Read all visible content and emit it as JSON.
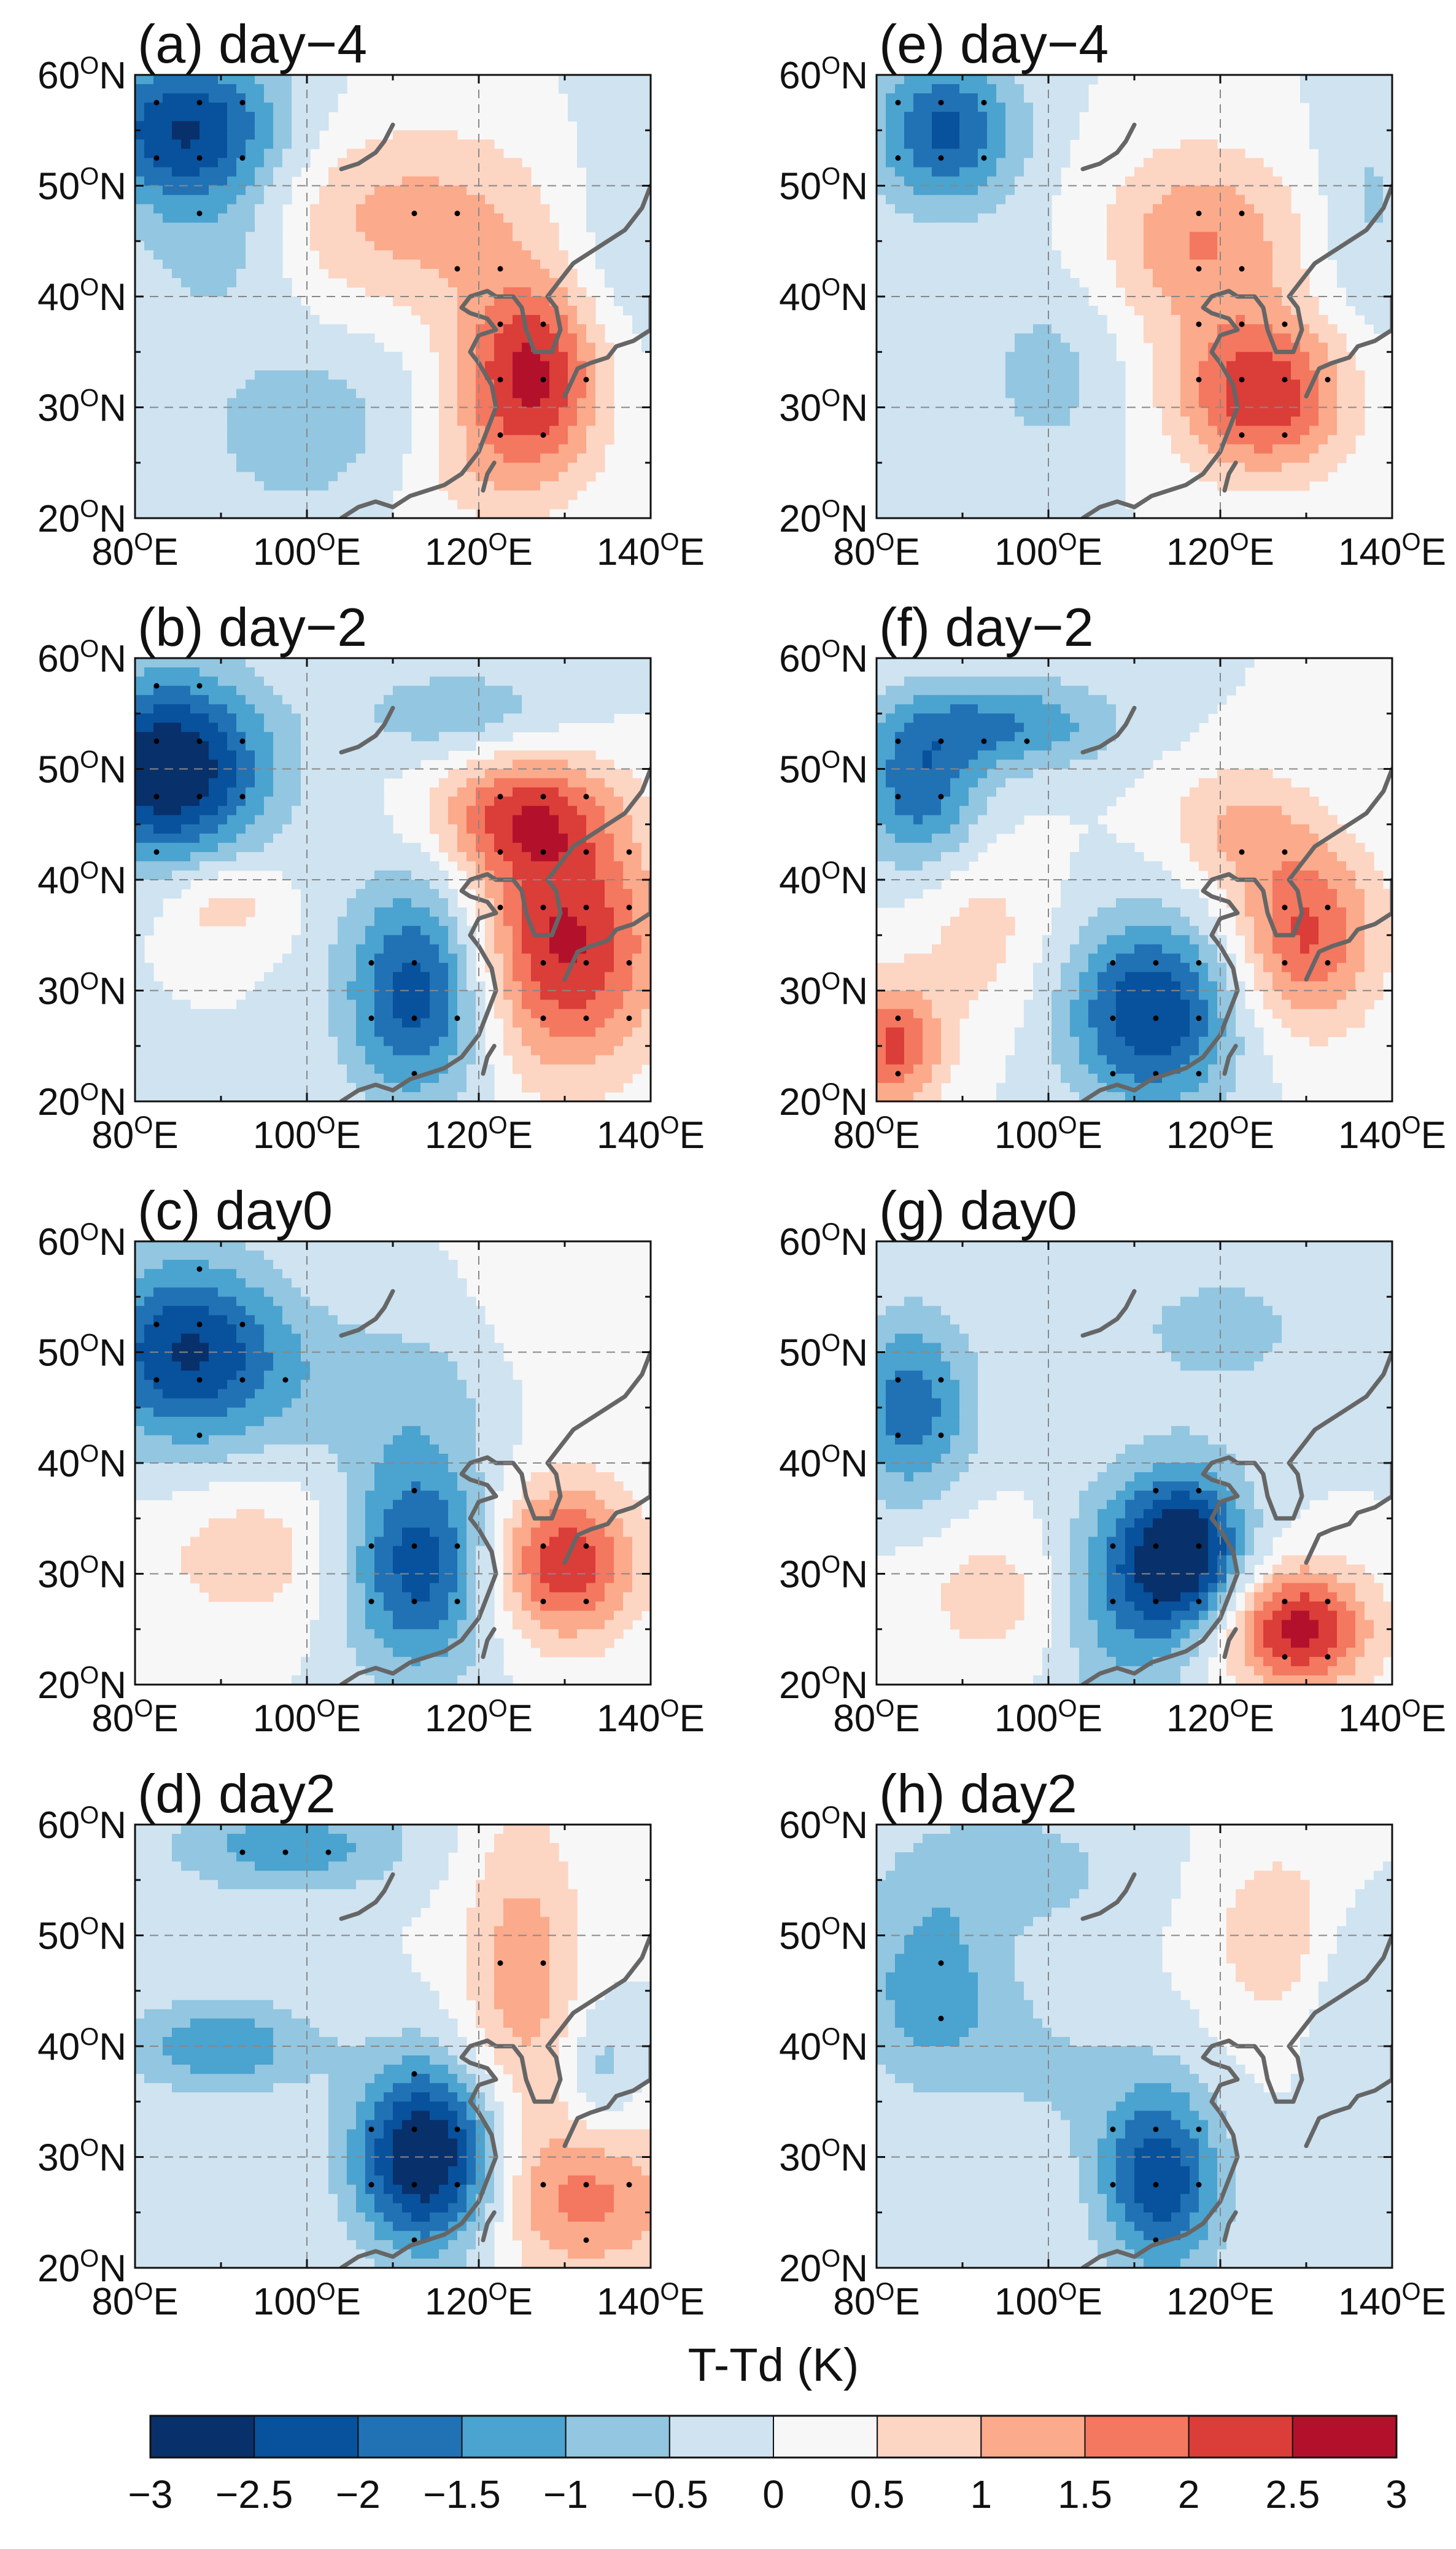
{
  "chart_data": {
    "type": "heatmap",
    "variable": "T-Td",
    "colorbar": {
      "title": "T-Td (K)",
      "ticks": [
        "−3",
        "−2.5",
        "−2",
        "−1.5",
        "−1",
        "−0.5",
        "0",
        "0.5",
        "1",
        "1.5",
        "2",
        "2.5",
        "3"
      ],
      "levels": [
        -3,
        -2.5,
        -2,
        -1.5,
        -1,
        -0.5,
        0,
        0.5,
        1,
        1.5,
        2,
        2.5,
        3
      ],
      "colors": [
        "#08306b",
        "#08519c",
        "#2171b5",
        "#4ba3cf",
        "#93c6e0",
        "#cfe3f1",
        "#f7f7f7",
        "#fdd5c3",
        "#fbaa8b",
        "#f4775f",
        "#db3d39",
        "#b3112b"
      ]
    },
    "axes": {
      "xlim": [
        80,
        140
      ],
      "ylim": [
        20,
        60
      ],
      "x_ticks": [
        {
          "base": "80",
          "sup": "O",
          "suffix": "E"
        },
        {
          "base": "100",
          "sup": "O",
          "suffix": "E"
        },
        {
          "base": "120",
          "sup": "O",
          "suffix": "E"
        },
        {
          "base": "140",
          "sup": "O",
          "suffix": "E"
        }
      ],
      "y_ticks": [
        {
          "base": "20",
          "sup": "O",
          "suffix": "N"
        },
        {
          "base": "30",
          "sup": "O",
          "suffix": "N"
        },
        {
          "base": "40",
          "sup": "O",
          "suffix": "N"
        },
        {
          "base": "50",
          "sup": "O",
          "suffix": "N"
        },
        {
          "base": "60",
          "sup": "O",
          "suffix": "N"
        }
      ]
    },
    "panels": [
      {
        "label": "(a) day−4",
        "anomalies": [
          {
            "lon": 86,
            "lat": 55,
            "amp": -2.6,
            "rx": 8,
            "ry": 5
          },
          {
            "lon": 90,
            "lat": 44,
            "amp": -0.8,
            "rx": 7,
            "ry": 5
          },
          {
            "lon": 112,
            "lat": 47,
            "amp": 1.2,
            "rx": 14,
            "ry": 6
          },
          {
            "lon": 126,
            "lat": 33,
            "amp": 2.7,
            "rx": 6,
            "ry": 6
          },
          {
            "lon": 100,
            "lat": 28,
            "amp": -0.8,
            "rx": 10,
            "ry": 6
          },
          {
            "lon": 136,
            "lat": 45,
            "amp": -0.6,
            "rx": 6,
            "ry": 8
          },
          {
            "lon": 120,
            "lat": 24,
            "amp": 0.6,
            "rx": 8,
            "ry": 4
          }
        ]
      },
      {
        "label": "(b) day−2",
        "anomalies": [
          {
            "lon": 84,
            "lat": 50,
            "amp": -3.1,
            "rx": 8,
            "ry": 6
          },
          {
            "lon": 113,
            "lat": 30,
            "amp": -2.4,
            "rx": 6,
            "ry": 7
          },
          {
            "lon": 130,
            "lat": 34,
            "amp": 2.6,
            "rx": 8,
            "ry": 8
          },
          {
            "lon": 125,
            "lat": 46,
            "amp": 1.9,
            "rx": 7,
            "ry": 4
          },
          {
            "lon": 90,
            "lat": 38,
            "amp": 0.9,
            "rx": 5,
            "ry": 3
          },
          {
            "lon": 118,
            "lat": 55,
            "amp": -0.9,
            "rx": 9,
            "ry": 3
          }
        ]
      },
      {
        "label": "(c) day0",
        "anomalies": [
          {
            "lon": 86,
            "lat": 50,
            "amp": -2.5,
            "rx": 8,
            "ry": 6
          },
          {
            "lon": 113,
            "lat": 31,
            "amp": -2.3,
            "rx": 6,
            "ry": 7
          },
          {
            "lon": 130,
            "lat": 31,
            "amp": 2.4,
            "rx": 6,
            "ry": 5
          },
          {
            "lon": 93,
            "lat": 32,
            "amp": 0.8,
            "rx": 8,
            "ry": 5
          },
          {
            "lon": 110,
            "lat": 47,
            "amp": -0.7,
            "rx": 12,
            "ry": 5
          },
          {
            "lon": 130,
            "lat": 50,
            "amp": 0.5,
            "rx": 8,
            "ry": 6
          }
        ]
      },
      {
        "label": "(d) day2",
        "anomalies": [
          {
            "lon": 114,
            "lat": 30,
            "amp": -3.2,
            "rx": 6,
            "ry": 6
          },
          {
            "lon": 90,
            "lat": 40,
            "amp": -1.4,
            "rx": 8,
            "ry": 3
          },
          {
            "lon": 125,
            "lat": 46,
            "amp": 1.3,
            "rx": 5,
            "ry": 11
          },
          {
            "lon": 133,
            "lat": 26,
            "amp": 1.6,
            "rx": 8,
            "ry": 5
          },
          {
            "lon": 98,
            "lat": 58,
            "amp": -1.3,
            "rx": 10,
            "ry": 3
          },
          {
            "lon": 134,
            "lat": 38,
            "amp": -0.8,
            "rx": 3,
            "ry": 4
          }
        ]
      },
      {
        "label": "(e) day−4",
        "anomalies": [
          {
            "lon": 88,
            "lat": 55,
            "amp": -2.1,
            "rx": 6,
            "ry": 5
          },
          {
            "lon": 118,
            "lat": 45,
            "amp": 1.5,
            "rx": 8,
            "ry": 6
          },
          {
            "lon": 125,
            "lat": 31,
            "amp": 2.4,
            "rx": 7,
            "ry": 5
          },
          {
            "lon": 100,
            "lat": 33,
            "amp": -0.7,
            "rx": 6,
            "ry": 6
          },
          {
            "lon": 137,
            "lat": 48,
            "amp": -0.6,
            "rx": 4,
            "ry": 8
          }
        ]
      },
      {
        "label": "(f) day−2",
        "anomalies": [
          {
            "lon": 85,
            "lat": 48,
            "amp": -1.8,
            "rx": 5,
            "ry": 5
          },
          {
            "lon": 95,
            "lat": 54,
            "amp": -1.5,
            "rx": 9,
            "ry": 3
          },
          {
            "lon": 112,
            "lat": 28,
            "amp": -2.5,
            "rx": 7,
            "ry": 6
          },
          {
            "lon": 130,
            "lat": 35,
            "amp": 2.1,
            "rx": 6,
            "ry": 6
          },
          {
            "lon": 82,
            "lat": 25,
            "amp": 2.1,
            "rx": 4,
            "ry": 4
          },
          {
            "lon": 122,
            "lat": 45,
            "amp": 1.0,
            "rx": 6,
            "ry": 4
          },
          {
            "lon": 92,
            "lat": 35,
            "amp": 0.7,
            "rx": 6,
            "ry": 6
          }
        ]
      },
      {
        "label": "(g) day0",
        "anomalies": [
          {
            "lon": 84,
            "lat": 45,
            "amp": -1.8,
            "rx": 5,
            "ry": 6
          },
          {
            "lon": 116,
            "lat": 32,
            "amp": -2.9,
            "rx": 5,
            "ry": 5
          },
          {
            "lon": 108,
            "lat": 28,
            "amp": -1.4,
            "rx": 6,
            "ry": 7
          },
          {
            "lon": 129,
            "lat": 25,
            "amp": 2.7,
            "rx": 6,
            "ry": 4
          },
          {
            "lon": 95,
            "lat": 28,
            "amp": 0.8,
            "rx": 8,
            "ry": 5
          },
          {
            "lon": 120,
            "lat": 52,
            "amp": -0.6,
            "rx": 12,
            "ry": 6
          }
        ]
      },
      {
        "label": "(h) day2",
        "anomalies": [
          {
            "lon": 86,
            "lat": 45,
            "amp": -1.3,
            "rx": 6,
            "ry": 6
          },
          {
            "lon": 113,
            "lat": 28,
            "amp": -2.4,
            "rx": 5,
            "ry": 6
          },
          {
            "lon": 127,
            "lat": 50,
            "amp": 0.9,
            "rx": 6,
            "ry": 6
          },
          {
            "lon": 100,
            "lat": 38,
            "amp": -0.5,
            "rx": 8,
            "ry": 6
          },
          {
            "lon": 135,
            "lat": 45,
            "amp": -0.7,
            "rx": 4,
            "ry": 6
          },
          {
            "lon": 95,
            "lat": 56,
            "amp": -0.8,
            "rx": 10,
            "ry": 4
          }
        ]
      }
    ]
  }
}
